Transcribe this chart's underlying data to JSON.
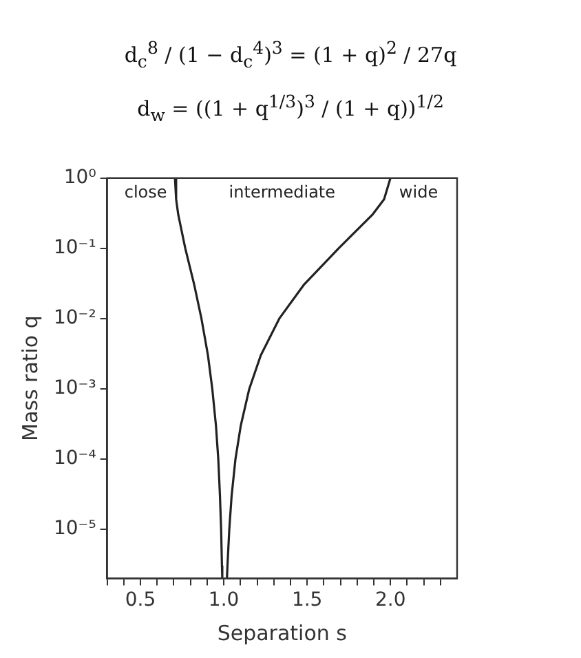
{
  "chart_data": {
    "type": "line",
    "xlabel": "Separation s",
    "ylabel": "Mass ratio q",
    "log": "y",
    "grid": false,
    "marker": "none",
    "line_style": "solid",
    "legend": false,
    "xlim": [
      0.3,
      2.4
    ],
    "ylim": [
      2e-06,
      1
    ],
    "xticks": [
      {
        "value": 0.3,
        "label": null
      },
      {
        "value": 0.4,
        "label": null
      },
      0.5,
      {
        "value": 0.6,
        "label": null
      },
      {
        "value": 0.7,
        "label": null
      },
      {
        "value": 0.8,
        "label": null
      },
      {
        "value": 0.9,
        "label": null
      },
      {
        "value": 1,
        "label": "1.0"
      },
      {
        "value": 1.1,
        "label": null
      },
      {
        "value": 1.2,
        "label": null
      },
      {
        "value": 1.3,
        "label": null
      },
      {
        "value": 1.4,
        "label": null
      },
      1.5,
      {
        "value": 1.6,
        "label": null
      },
      {
        "value": 1.7,
        "label": null
      },
      {
        "value": 1.8,
        "label": null
      },
      {
        "value": 1.9,
        "label": null
      },
      {
        "value": 2,
        "label": "2.0"
      },
      {
        "value": 2.1,
        "label": null
      },
      {
        "value": 2.2,
        "label": null
      },
      {
        "value": 2.3,
        "label": null
      }
    ],
    "yticks": [
      {
        "value": 1,
        "label": "10⁰"
      },
      {
        "value": 0.1,
        "label": "10⁻¹"
      },
      {
        "value": 0.01,
        "label": "10⁻²"
      },
      {
        "value": 0.001,
        "label": "10⁻³"
      },
      {
        "value": 0.0001,
        "label": "10⁻⁴"
      },
      {
        "value": 1e-05,
        "label": "10⁻⁵"
      }
    ],
    "series": [
      {
        "color": "#222222",
        "x": [
          0.707,
          0.714,
          0.727,
          0.769,
          0.823,
          0.866,
          0.905,
          0.931,
          0.953,
          0.967,
          0.977,
          0.984,
          0.989,
          0.991
        ],
        "values": [
          1,
          0.5,
          0.3,
          0.1,
          0.03,
          0.01,
          0.003,
          0.001,
          0.0003,
          0.0001,
          3e-05,
          1e-05,
          3e-06,
          2e-06
        ]
      },
      {
        "color": "#222222",
        "x": [
          2.0,
          1.962,
          1.891,
          1.689,
          1.479,
          1.333,
          1.222,
          1.153,
          1.102,
          1.07,
          1.047,
          1.033,
          1.022,
          1.019
        ],
        "values": [
          1,
          0.5,
          0.3,
          0.1,
          0.03,
          0.01,
          0.003,
          0.001,
          0.0003,
          0.0001,
          3e-05,
          1e-05,
          3e-06,
          2e-06
        ]
      }
    ],
    "annotations": [
      "d$_{c}$$^{8}$ / (1 − d$_{c}$$^{4}$)$^{3}$ = (1 + q)$^{2}$ / 27q",
      "d$_{w}$ = ((1 + q$^{1/3}$)$^{3}$ / (1 + q))$^{1/2}$",
      "close",
      "intermediate",
      "wide"
    ]
  }
}
